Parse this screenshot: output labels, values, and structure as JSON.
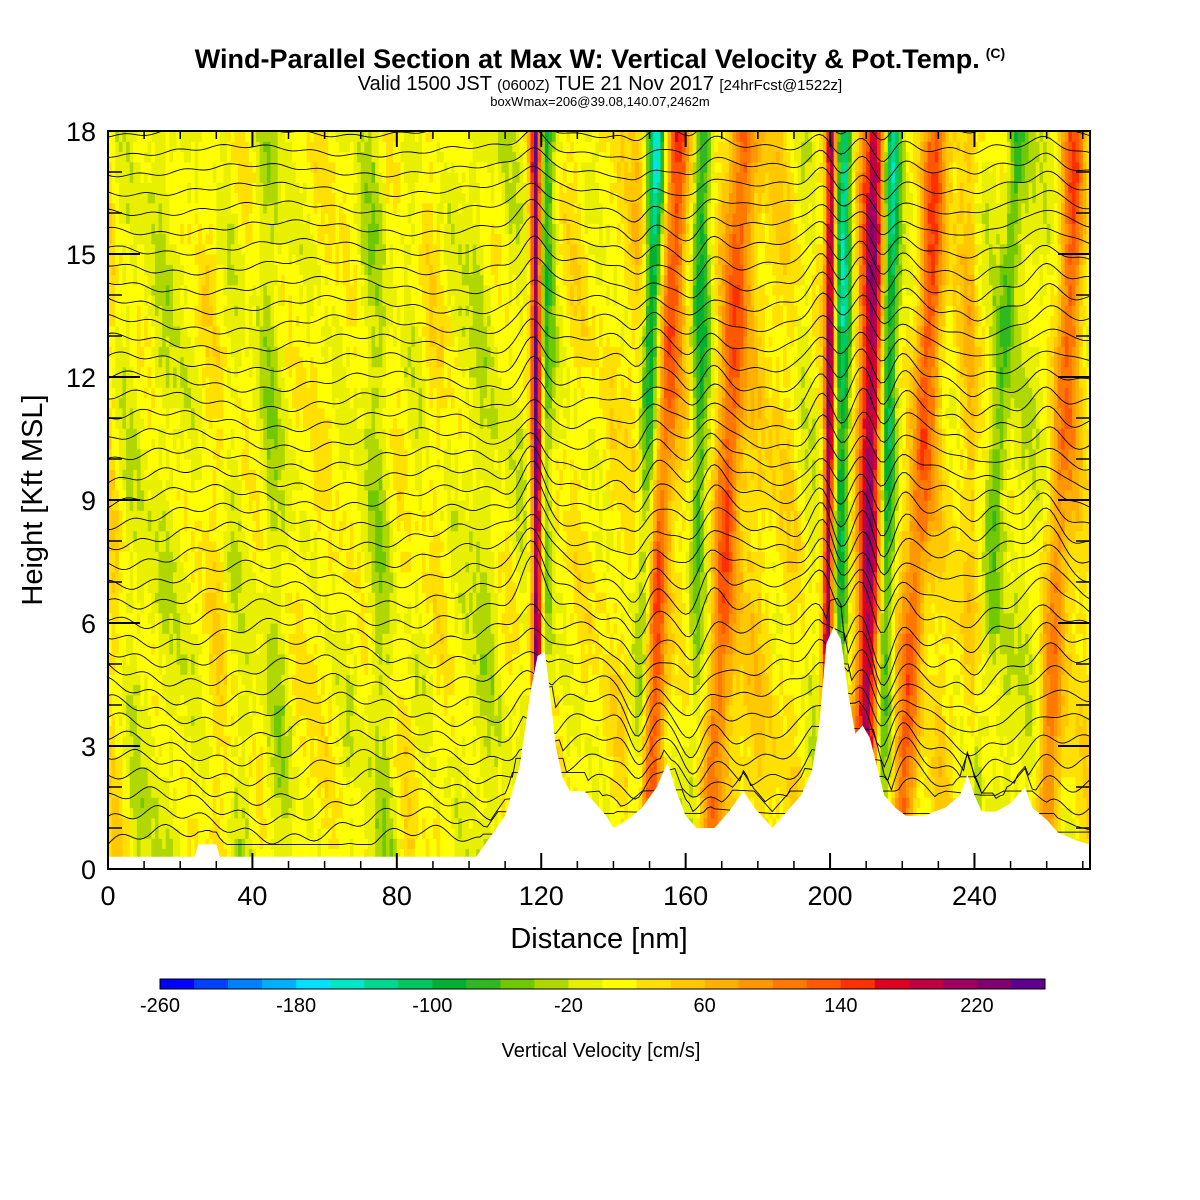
{
  "chart_data": {
    "type": "heatmap",
    "title": "Wind-Parallel Section at Max W: Vertical Velocity & Pot.Temp.",
    "title_mark": "(C)",
    "subtitle_parts": {
      "valid": "Valid 1500 JST",
      "utc": "(0600Z)",
      "date": "TUE 21 Nov 2017",
      "fcst": "[24hrFcst@1522z]"
    },
    "note": "boxWmax=206@39.08,140.07,2462m",
    "xlabel": "Distance [nm]",
    "ylabel": "Height [Kft MSL]",
    "xlim": [
      0,
      272
    ],
    "ylim": [
      0,
      18
    ],
    "x_ticks": [
      "0",
      "40",
      "80",
      "120",
      "160",
      "200",
      "240"
    ],
    "y_ticks": [
      "0",
      "3",
      "6",
      "9",
      "12",
      "15",
      "18"
    ],
    "colorbar": {
      "label": "Vertical Velocity [cm/s]",
      "range": [
        -260,
        260
      ],
      "ticks": [
        "-260",
        "-180",
        "-100",
        "-20",
        "60",
        "140",
        "220"
      ],
      "colors": [
        "#0000ff",
        "#0040ff",
        "#0080ff",
        "#00b0ff",
        "#00e0ff",
        "#00e8c8",
        "#00d890",
        "#00c860",
        "#00b030",
        "#30b820",
        "#70c800",
        "#b0d800",
        "#e8f000",
        "#ffff00",
        "#ffe000",
        "#ffc800",
        "#ffb000",
        "#ff9800",
        "#ff7800",
        "#ff5800",
        "#ff3000",
        "#e00020",
        "#c00040",
        "#a00060",
        "#800070",
        "#600090"
      ]
    },
    "terrain_kft": [
      [
        0,
        0.3
      ],
      [
        24,
        0.3
      ],
      [
        25,
        0.6
      ],
      [
        30,
        0.6
      ],
      [
        31,
        0.3
      ],
      [
        102,
        0.3
      ],
      [
        106,
        0.8
      ],
      [
        110,
        1.3
      ],
      [
        114,
        2.5
      ],
      [
        117,
        4.3
      ],
      [
        119,
        5.2
      ],
      [
        121,
        5.3
      ],
      [
        122,
        4.6
      ],
      [
        124,
        3.0
      ],
      [
        126,
        2.2
      ],
      [
        128,
        1.9
      ],
      [
        132,
        1.9
      ],
      [
        135,
        1.6
      ],
      [
        138,
        1.3
      ],
      [
        140,
        1.0
      ],
      [
        144,
        1.2
      ],
      [
        148,
        1.5
      ],
      [
        152,
        2.0
      ],
      [
        155,
        2.6
      ],
      [
        157,
        2.0
      ],
      [
        160,
        1.3
      ],
      [
        163,
        1.0
      ],
      [
        168,
        1.0
      ],
      [
        172,
        1.4
      ],
      [
        176,
        1.9
      ],
      [
        179,
        1.5
      ],
      [
        182,
        1.2
      ],
      [
        184,
        1.0
      ],
      [
        188,
        1.4
      ],
      [
        192,
        1.8
      ],
      [
        195,
        2.4
      ],
      [
        197,
        3.5
      ],
      [
        198,
        4.5
      ],
      [
        199,
        5.5
      ],
      [
        201,
        5.9
      ],
      [
        203,
        5.6
      ],
      [
        205,
        4.3
      ],
      [
        207,
        3.3
      ],
      [
        209,
        3.5
      ],
      [
        211,
        3.2
      ],
      [
        213,
        2.5
      ],
      [
        215,
        1.8
      ],
      [
        218,
        1.5
      ],
      [
        221,
        1.3
      ],
      [
        226,
        1.3
      ],
      [
        232,
        1.5
      ],
      [
        236,
        1.8
      ],
      [
        238,
        2.3
      ],
      [
        240,
        1.8
      ],
      [
        242,
        1.4
      ],
      [
        246,
        1.4
      ],
      [
        250,
        1.6
      ],
      [
        254,
        2.0
      ],
      [
        256,
        1.5
      ],
      [
        260,
        1.2
      ],
      [
        263,
        0.9
      ],
      [
        268,
        0.7
      ],
      [
        272,
        0.6
      ]
    ],
    "updraft_bands": [
      {
        "x_bottom": 119,
        "x_top": 118.5,
        "w": 230
      },
      {
        "x_bottom": 149,
        "x_top": 158,
        "w": 110
      },
      {
        "x_bottom": 167,
        "x_top": 176,
        "w": 100
      },
      {
        "x_bottom": 199,
        "x_top": 200.5,
        "w": 206
      },
      {
        "x_bottom": 210,
        "x_top": 213,
        "w": 180
      },
      {
        "x_bottom": 220,
        "x_top": 230,
        "w": 110
      },
      {
        "x_bottom": 260,
        "x_top": 268,
        "w": 100
      }
    ],
    "downdraft_bands": [
      {
        "x_bottom": 121,
        "x_top": 121,
        "w": -130
      },
      {
        "x_bottom": 147,
        "x_top": 152,
        "w": -170
      },
      {
        "x_bottom": 162,
        "x_top": 165,
        "w": -90
      },
      {
        "x_bottom": 202,
        "x_top": 204,
        "w": -160
      },
      {
        "x_bottom": 214,
        "x_top": 217,
        "w": -190
      },
      {
        "x_bottom": 240,
        "x_top": 252,
        "w": -60
      }
    ]
  }
}
